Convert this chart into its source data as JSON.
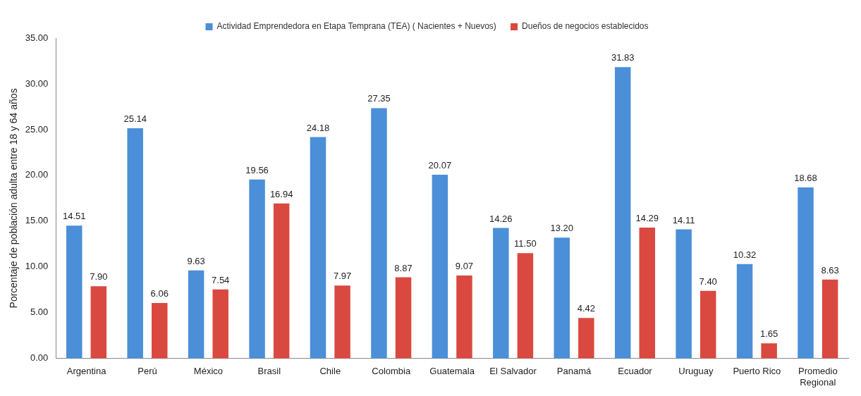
{
  "chart_data": {
    "type": "bar",
    "ylabel": "Porcentaje de población adulta entre 18 y 64 años",
    "categories": [
      "Argentina",
      "Perú",
      "México",
      "Brasil",
      "Chile",
      "Colombia",
      "Guatemala",
      "El Salvador",
      "Panamá",
      "Ecuador",
      "Uruguay",
      "Puerto Rico",
      "Promedio Regional"
    ],
    "series": [
      {
        "name": "Actividad Emprendedora en Etapa Temprana (TEA) ( Nacientes + Nuevos)",
        "color": "#4a8fd8",
        "values": [
          14.51,
          25.14,
          9.63,
          19.56,
          24.18,
          27.35,
          20.07,
          14.26,
          13.2,
          31.83,
          14.11,
          10.32,
          18.68
        ],
        "value_labels": [
          "14.51",
          "25.14",
          "9.63",
          "19.56",
          "24.18",
          "27.35",
          "20.07",
          "14.26",
          "13.20",
          "31.83",
          "14.11",
          "10.32",
          "18.68"
        ]
      },
      {
        "name": "Dueños de negocios establecidos",
        "color": "#d9493f",
        "values": [
          7.9,
          6.06,
          7.54,
          16.94,
          7.97,
          8.87,
          9.07,
          11.5,
          4.42,
          14.29,
          7.4,
          1.65,
          8.63
        ],
        "value_labels": [
          "7.90",
          "6.06",
          "7.54",
          "16.94",
          "7.97",
          "8.87",
          "9.07",
          "11.50",
          "4.42",
          "14.29",
          "7.40",
          "1.65",
          "8.63"
        ]
      }
    ],
    "ylim": [
      0,
      35
    ],
    "yticks": [
      {
        "value": 0,
        "label": "0.00"
      },
      {
        "value": 5,
        "label": "5.00"
      },
      {
        "value": 10,
        "label": "10.00"
      },
      {
        "value": 15,
        "label": "15.00"
      },
      {
        "value": 20,
        "label": "20.00"
      },
      {
        "value": 25,
        "label": "25.00"
      },
      {
        "value": 30,
        "label": "30.00"
      },
      {
        "value": 35,
        "label": "35.00"
      }
    ],
    "grid": false,
    "legend": "top"
  }
}
